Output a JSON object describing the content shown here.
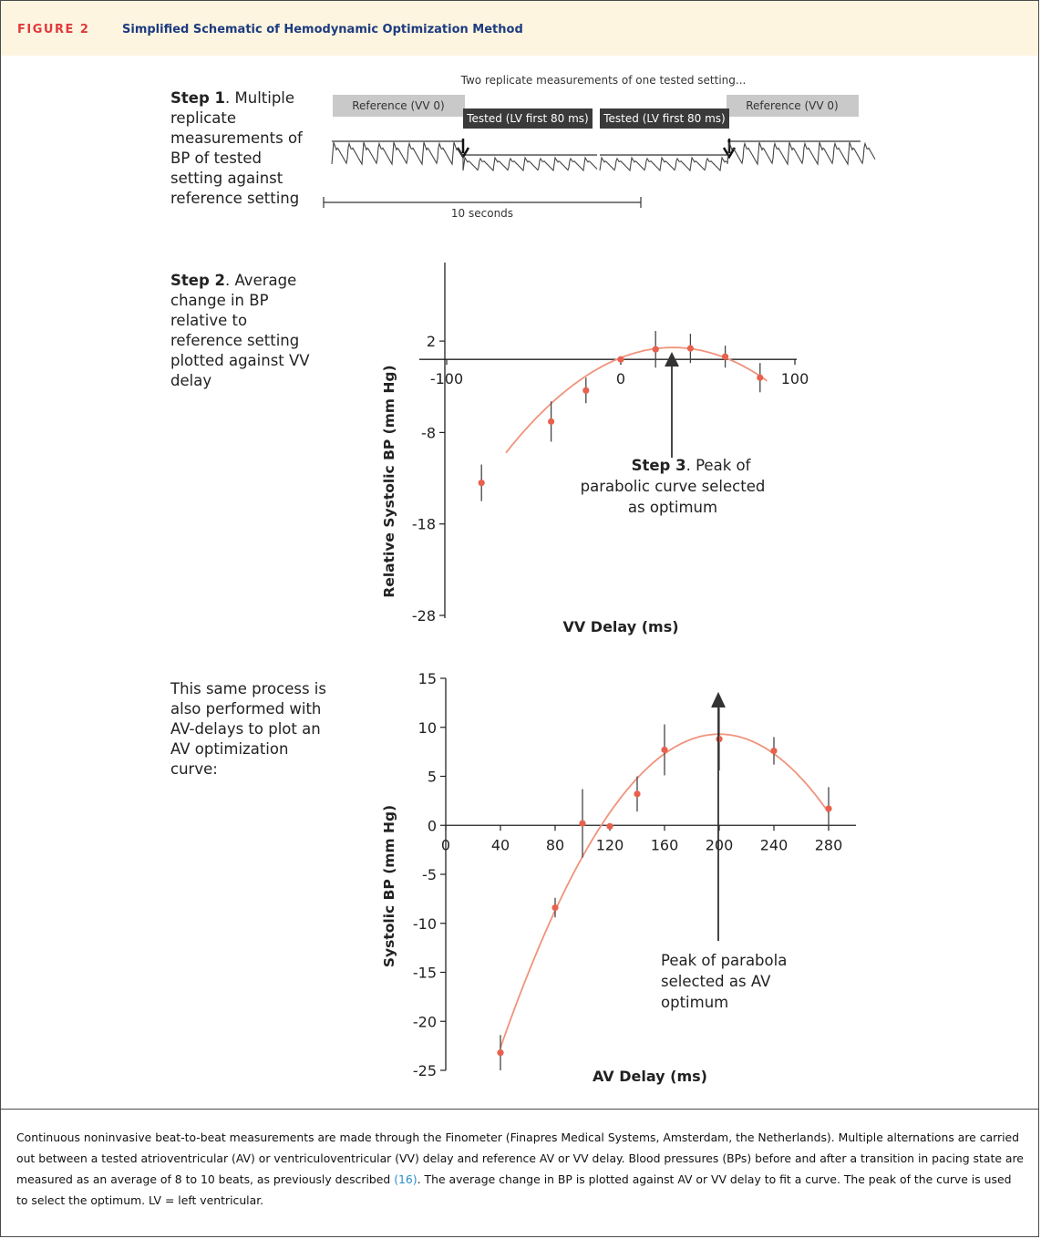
{
  "figure": {
    "label": "FIGURE 2",
    "title": "Simplified Schematic of Hemodynamic Optimization Method"
  },
  "step1": {
    "bold": "Step 1",
    "text": ". Multiple replicate measurements of BP of tested setting against reference setting",
    "lines": [
      "Multiple",
      "replicate",
      "measurements of",
      "BP of tested",
      "setting against",
      "reference setting"
    ]
  },
  "trace": {
    "top_note": "Two replicate measurements of one tested setting...",
    "ref_left": "Reference (VV 0)",
    "ref_right": "Reference (VV 0)",
    "tested_1": "Tested (LV first 80 ms)",
    "tested_2": "Tested (LV first 80 ms)",
    "scale_label": "10 seconds",
    "colors": {
      "reference_box": "#c9c9c9",
      "tested_box": "#3a3a3a",
      "trace": "#444444"
    }
  },
  "step2": {
    "bold": "Step 2",
    "lines_first": ". Average",
    "lines": [
      "change in BP",
      "relative to",
      "reference setting",
      "plotted against VV",
      "delay"
    ]
  },
  "step3": {
    "bold": "Step 3",
    "line1_rest": ". Peak of",
    "line2": "parabolic curve selected",
    "line3": "as optimum"
  },
  "step4": {
    "lines": [
      "This same process is",
      "also performed with",
      "AV-delays to plot an",
      "AV optimization",
      "curve:"
    ]
  },
  "peak_note_av": {
    "lines": [
      "Peak of parabola",
      "selected as AV",
      "optimum"
    ]
  },
  "chart_data": [
    {
      "type": "scatter",
      "title": "",
      "xlabel": "VV Delay (ms)",
      "ylabel": "Relative Systolic BP (mm Hg)",
      "xlim": [
        -100,
        100
      ],
      "ylim": [
        -28,
        6
      ],
      "xticks": [
        -100,
        0,
        100
      ],
      "xtick_labels": [
        "-100",
        "0",
        "100"
      ],
      "yticks": [
        2,
        -8,
        -18,
        -28
      ],
      "ytick_labels": [
        "2",
        "-8",
        "-18",
        "-28"
      ],
      "series": [
        {
          "points": [
            {
              "x": -80,
              "y": -13.5,
              "err": 2.0
            },
            {
              "x": -40,
              "y": -6.8,
              "err": 2.2
            },
            {
              "x": -20,
              "y": -3.4,
              "err": 1.4
            },
            {
              "x": 0,
              "y": 0.0,
              "err": 0
            },
            {
              "x": 20,
              "y": 1.1,
              "err": 2.0
            },
            {
              "x": 40,
              "y": 1.2,
              "err": 1.6
            },
            {
              "x": 60,
              "y": 0.3,
              "err": 1.2
            },
            {
              "x": 80,
              "y": -2.0,
              "err": 1.6
            }
          ]
        }
      ],
      "fit": {
        "type": "parabola",
        "vertex_x": 30,
        "vertex_y": 1.3,
        "a": -0.00125,
        "x_from": -66,
        "x_to": 84
      },
      "grid": false,
      "colors": {
        "points": "#e8614f",
        "curve": "#f0937c",
        "axes": "#222222",
        "errorbars": "#444444"
      }
    },
    {
      "type": "scatter",
      "title": "",
      "xlabel": "AV Delay (ms)",
      "ylabel": "Systolic BP (mm Hg)",
      "xlim": [
        0,
        300
      ],
      "ylim": [
        -25,
        15
      ],
      "xticks": [
        0,
        40,
        80,
        120,
        160,
        200,
        240,
        280
      ],
      "xtick_labels": [
        "0",
        "40",
        "80",
        "120",
        "160",
        "200",
        "240",
        "280"
      ],
      "yticks": [
        15,
        10,
        5,
        0,
        -5,
        -10,
        -15,
        -20,
        -25
      ],
      "ytick_labels": [
        "15",
        "10",
        "5",
        "0",
        "-5",
        "-10",
        "-15",
        "-20",
        "-25"
      ],
      "series": [
        {
          "points": [
            {
              "x": 40,
              "y": -23.2,
              "err": 1.8
            },
            {
              "x": 80,
              "y": -8.4,
              "err": 1.0
            },
            {
              "x": 100,
              "y": 0.2,
              "err": 3.5
            },
            {
              "x": 120,
              "y": -0.1,
              "err": 0
            },
            {
              "x": 140,
              "y": 3.2,
              "err": 1.8
            },
            {
              "x": 160,
              "y": 7.7,
              "err": 2.6
            },
            {
              "x": 200,
              "y": 8.8,
              "err": 3.2
            },
            {
              "x": 240,
              "y": 7.6,
              "err": 1.4
            },
            {
              "x": 280,
              "y": 1.7,
              "err": 2.2
            }
          ]
        }
      ],
      "fit": {
        "type": "parabola",
        "vertex_x": 200,
        "vertex_y": 9.3,
        "a": -0.00125,
        "x_from": 40,
        "x_to": 280
      },
      "grid": false,
      "colors": {
        "points": "#e8614f",
        "curve": "#f0937c",
        "axes": "#222222",
        "errorbars": "#444444"
      }
    }
  ],
  "caption": {
    "part1": "Continuous noninvasive beat-to-beat measurements are made through the Finometer (Finapres Medical Systems, Amsterdam, the Netherlands). Multiple alternations are carried out between a tested atrioventricular (AV) or ventriculoventricular (VV) delay and reference AV or VV delay. Blood pressures (BPs) before and after a transition in pacing state are measured as an average of 8 to 10 beats, as previously described ",
    "ref": "(16)",
    "part2": ". The average change in BP is plotted against AV or VV delay to fit a curve. The peak of the curve is used to select the optimum. LV = left ventricular."
  }
}
